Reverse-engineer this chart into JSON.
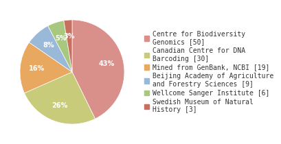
{
  "labels": [
    "Centre for Biodiversity\nGenomics [50]",
    "Canadian Centre for DNA\nBarcoding [30]",
    "Mined from GenBank, NCBI [19]",
    "Beijing Academy of Agriculture\nand Forestry Sciences [9]",
    "Wellcome Sanger Institute [6]",
    "Swedish Museum of Natural\nHistory [3]"
  ],
  "values": [
    50,
    30,
    19,
    9,
    6,
    3
  ],
  "colors": [
    "#d9908a",
    "#c8cc7a",
    "#e8a860",
    "#9ab8d8",
    "#a8c880",
    "#c87060"
  ],
  "startangle": 90,
  "background_color": "#ffffff",
  "text_color": "#333333",
  "fontsize": 7.0,
  "legend_fontsize": 7.0
}
